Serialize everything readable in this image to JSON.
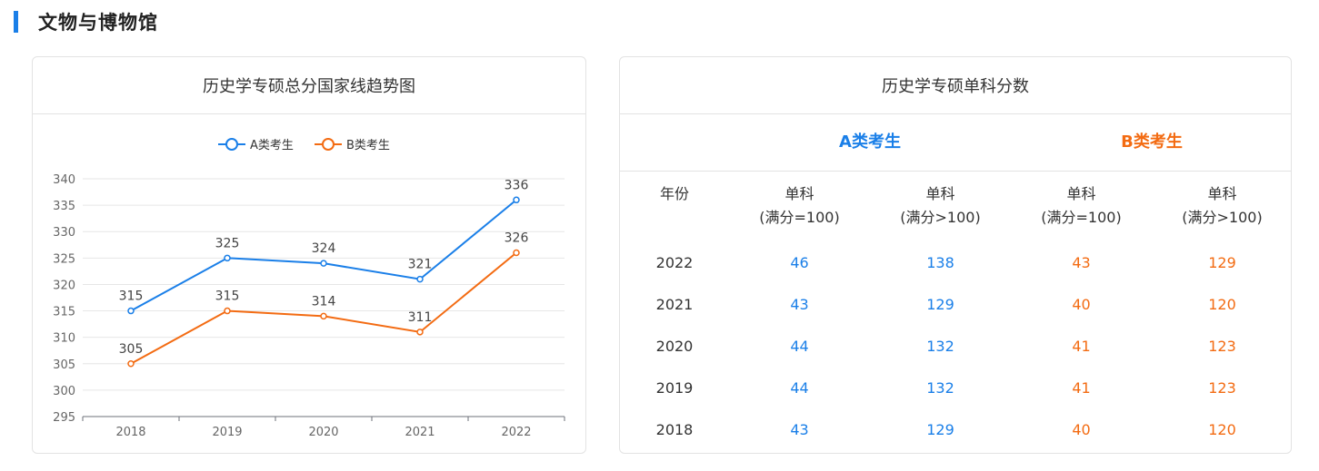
{
  "section": {
    "title": "文物与博物馆"
  },
  "chart_card": {
    "title": "历史学专硕总分国家线趋势图"
  },
  "chart_data": {
    "type": "line",
    "title": "历史学专硕总分国家线趋势图",
    "categories": [
      "2018",
      "2019",
      "2020",
      "2021",
      "2022"
    ],
    "series": [
      {
        "name": "A类考生",
        "values": [
          315,
          325,
          324,
          321,
          336
        ],
        "color": "#1a7fe8"
      },
      {
        "name": "B类考生",
        "values": [
          305,
          315,
          314,
          311,
          326
        ],
        "color": "#f36b12"
      }
    ],
    "ylim": [
      295,
      340
    ],
    "yticks": [
      295,
      300,
      305,
      310,
      315,
      320,
      325,
      330,
      335,
      340
    ],
    "grid": true,
    "legend": "top-center",
    "xlabel": "",
    "ylabel": ""
  },
  "table_card": {
    "title": "历史学专硕单科分数",
    "group_a": "A类考生",
    "group_b": "B类考生",
    "headers": {
      "year": "年份",
      "a1": [
        "单科",
        "(满分=100)"
      ],
      "a2": [
        "单科",
        "(满分>100)"
      ],
      "b1": [
        "单科",
        "(满分=100)"
      ],
      "b2": [
        "单科",
        "(满分>100)"
      ]
    },
    "rows": [
      {
        "year": "2022",
        "a1": "46",
        "a2": "138",
        "b1": "43",
        "b2": "129"
      },
      {
        "year": "2021",
        "a1": "43",
        "a2": "129",
        "b1": "40",
        "b2": "120"
      },
      {
        "year": "2020",
        "a1": "44",
        "a2": "132",
        "b1": "41",
        "b2": "123"
      },
      {
        "year": "2019",
        "a1": "44",
        "a2": "132",
        "b1": "41",
        "b2": "123"
      },
      {
        "year": "2018",
        "a1": "43",
        "a2": "129",
        "b1": "40",
        "b2": "120"
      }
    ],
    "colors": {
      "a": "#1a7fe8",
      "b": "#f36b12"
    }
  }
}
